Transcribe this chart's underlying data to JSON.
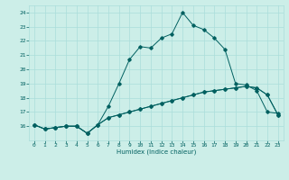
{
  "xlabel": "Humidex (Indice chaleur)",
  "bg_color": "#cceee8",
  "grid_color": "#aaddda",
  "line_color": "#006060",
  "xlim": [
    -0.5,
    23.5
  ],
  "ylim": [
    15.0,
    24.5
  ],
  "yticks": [
    16,
    17,
    18,
    19,
    20,
    21,
    22,
    23,
    24
  ],
  "xticks": [
    0,
    1,
    2,
    3,
    4,
    5,
    6,
    7,
    8,
    9,
    10,
    11,
    12,
    13,
    14,
    15,
    16,
    17,
    18,
    19,
    20,
    21,
    22,
    23
  ],
  "line1_x": [
    0,
    1,
    2,
    3,
    4,
    5,
    6,
    7,
    8,
    9,
    10,
    11,
    12,
    13,
    14,
    15,
    16,
    17,
    18,
    19,
    20,
    21,
    22,
    23
  ],
  "line1_y": [
    16.1,
    15.8,
    15.9,
    16.0,
    16.0,
    15.5,
    16.1,
    16.6,
    16.8,
    17.0,
    17.2,
    17.4,
    17.6,
    17.8,
    18.0,
    18.2,
    18.4,
    18.5,
    18.6,
    18.7,
    18.8,
    18.7,
    18.2,
    16.8
  ],
  "line2_x": [
    0,
    1,
    2,
    3,
    4,
    5,
    6,
    7,
    8,
    9,
    10,
    11,
    12,
    13,
    14,
    15,
    16,
    17,
    18,
    19,
    20,
    21,
    22,
    23
  ],
  "line2_y": [
    16.1,
    15.8,
    15.9,
    16.0,
    16.0,
    15.5,
    16.1,
    17.4,
    19.0,
    20.7,
    21.6,
    21.5,
    22.2,
    22.5,
    24.0,
    23.1,
    22.8,
    22.2,
    21.4,
    19.0,
    18.9,
    18.5,
    17.0,
    16.9
  ],
  "line3_x": [
    0,
    1,
    2,
    3,
    4,
    5,
    6,
    7,
    8,
    9,
    10,
    11,
    12,
    13,
    14,
    15,
    16,
    17,
    18,
    19,
    20,
    21,
    22,
    23
  ],
  "line3_y": [
    16.1,
    15.8,
    15.9,
    16.0,
    16.0,
    15.5,
    16.1,
    16.6,
    16.8,
    17.0,
    17.2,
    17.4,
    17.6,
    17.8,
    18.0,
    18.2,
    18.4,
    18.5,
    18.6,
    18.7,
    18.8,
    18.7,
    18.2,
    16.8
  ]
}
